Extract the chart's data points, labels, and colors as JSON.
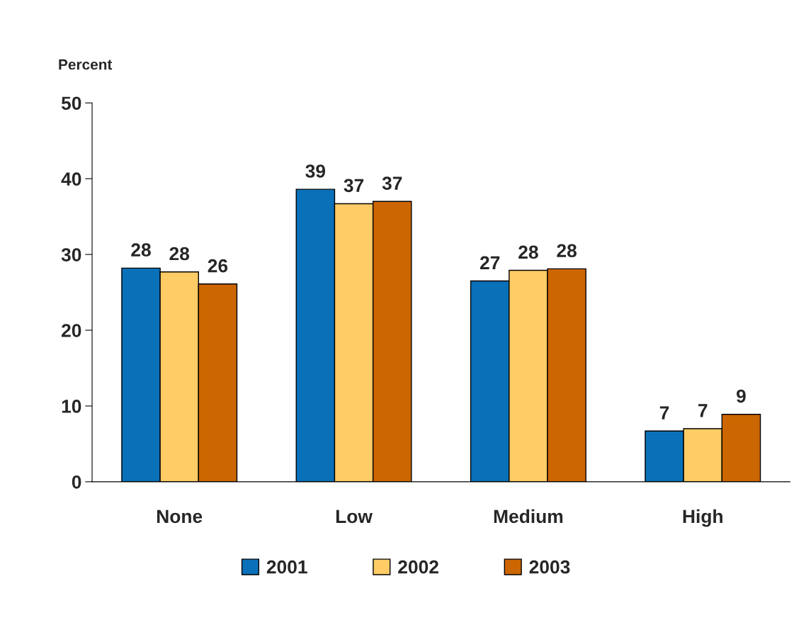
{
  "chart_data": {
    "type": "bar",
    "ylabel": "Percent",
    "categories": [
      "None",
      "Low",
      "Medium",
      "High"
    ],
    "series": [
      {
        "name": "2001",
        "color": "#0a70b8",
        "values": [
          28.2,
          38.6,
          26.5,
          6.7
        ],
        "value_labels": [
          "28",
          "39",
          "27",
          "7"
        ]
      },
      {
        "name": "2002",
        "color": "#ffcc66",
        "values": [
          27.7,
          36.7,
          27.9,
          7.0
        ],
        "value_labels": [
          "28",
          "37",
          "28",
          "7"
        ]
      },
      {
        "name": "2003",
        "color": "#cc6600",
        "values": [
          26.1,
          37.0,
          28.1,
          8.9
        ],
        "value_labels": [
          "26",
          "37",
          "28",
          "9"
        ]
      }
    ],
    "ylim": [
      0,
      50
    ],
    "yticks": [
      0,
      10,
      20,
      30,
      40,
      50
    ],
    "grid": false,
    "legend": "bottom"
  }
}
